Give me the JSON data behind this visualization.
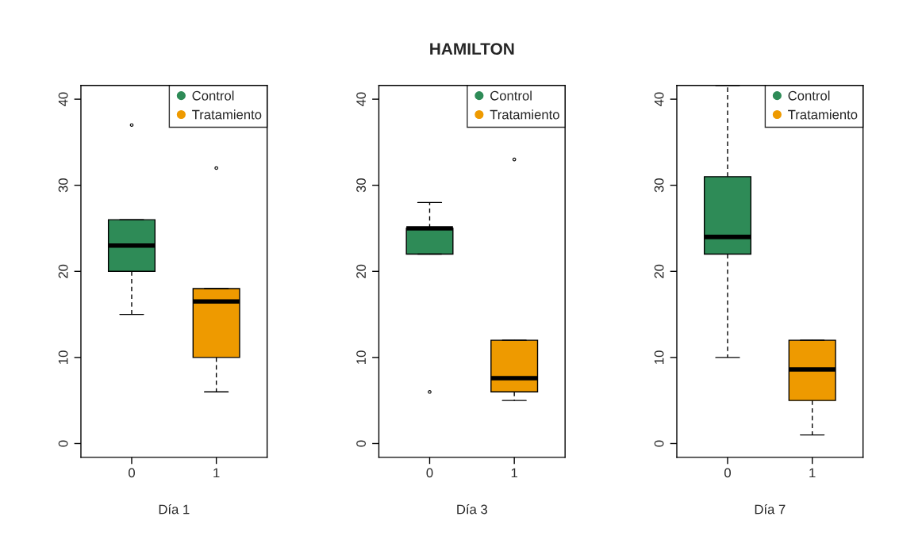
{
  "chart_data": [
    {
      "type": "box",
      "xlabel": "Día 1",
      "categories": [
        "0",
        "1"
      ],
      "ylim": [
        -1.6,
        41.6
      ],
      "yticks": [
        0,
        10,
        20,
        30,
        40
      ],
      "grid": false,
      "legend": "top right",
      "marker": "circle",
      "series": [
        {
          "name": "Control",
          "color": "#2e8b57",
          "boxes": [
            {
              "low": 15,
              "q1": 20,
              "median": 23,
              "q3": 26,
              "high": 26,
              "outliers": [
                37
              ]
            },
            null
          ]
        },
        {
          "name": "Tratamiento",
          "color": "#ee9a00",
          "boxes": [
            null,
            {
              "low": 6,
              "q1": 10,
              "median": 16.5,
              "q3": 18,
              "high": 18,
              "outliers": [
                32
              ]
            }
          ]
        }
      ]
    },
    {
      "type": "box",
      "title": "HAMILTON",
      "xlabel": "Día 3",
      "categories": [
        "0",
        "1"
      ],
      "ylim": [
        -1.6,
        41.6
      ],
      "yticks": [
        0,
        10,
        20,
        30,
        40
      ],
      "grid": false,
      "legend": "top right",
      "marker": "circle",
      "series": [
        {
          "name": "Control",
          "color": "#2e8b57",
          "boxes": [
            {
              "low": 22,
              "q1": 22,
              "median": 25,
              "q3": 25,
              "high": 28,
              "outliers": [
                6
              ]
            },
            null
          ]
        },
        {
          "name": "Tratamiento",
          "color": "#ee9a00",
          "boxes": [
            null,
            {
              "low": 5,
              "q1": 6,
              "median": 7.6,
              "q3": 12,
              "high": 12,
              "outliers": [
                33
              ]
            }
          ]
        }
      ]
    },
    {
      "type": "box",
      "xlabel": "Día 7",
      "categories": [
        "0",
        "1"
      ],
      "ylim": [
        -1.6,
        41.6
      ],
      "yticks": [
        0,
        10,
        20,
        30,
        40
      ],
      "grid": false,
      "legend": "top right",
      "marker": "circle",
      "series": [
        {
          "name": "Control",
          "color": "#2e8b57",
          "boxes": [
            {
              "low": 10,
              "q1": 22,
              "median": 24,
              "q3": 31,
              "high": 41.6
            },
            null
          ]
        },
        {
          "name": "Tratamiento",
          "color": "#ee9a00",
          "boxes": [
            null,
            {
              "low": 1,
              "q1": 5,
              "median": 8.6,
              "q3": 12,
              "high": 12
            }
          ]
        }
      ]
    }
  ]
}
